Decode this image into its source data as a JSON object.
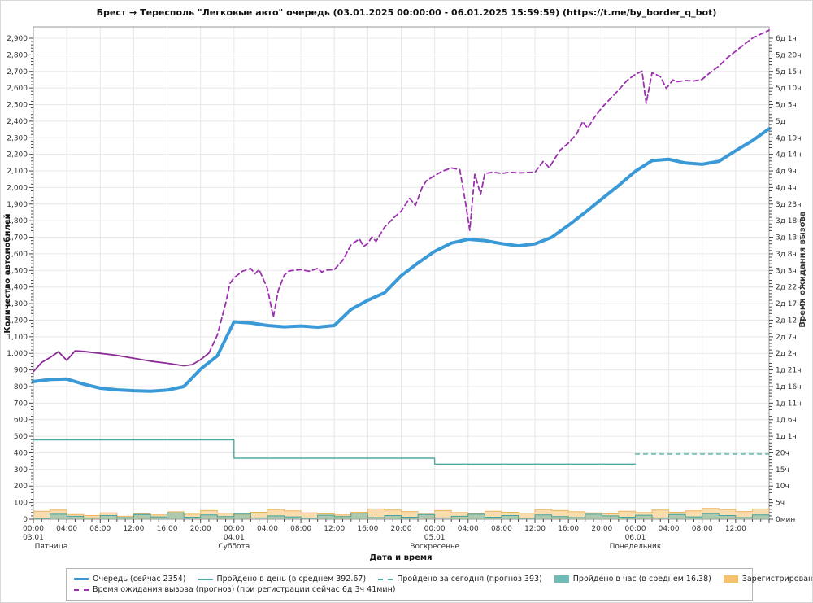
{
  "title": "Брест  →  Тересполь \"Легковые авто\" очередь (03.01.2025 00:00:00 - 06.01.2025 15:59:59) (https://t.me/by_border_q_bot)",
  "axes": {
    "x_label": "Дата и время",
    "left_label": "Количество автомобилей",
    "right_label": "Время ожидания вызова"
  },
  "colors": {
    "queue_blue": "#3a9ad8",
    "wait_purple": "#8a2b96",
    "wait_purple_forecast": "#9b2fae",
    "teal": "#4faaa4",
    "teal_fill": "rgba(85,178,172,0.45)",
    "orange": "#edb45e",
    "orange_fill": "rgba(245,193,110,0.55)",
    "grid": "#e8e8e8",
    "frame": "#999999"
  },
  "chart_data": {
    "type": "line",
    "title": "Брест → Тересполь \"Легковые авто\" очередь (03.01.2025 00:00:00 - 06.01.2025 15:59:59)",
    "xlabel": "Дата и время",
    "ylabel": "Количество автомобилей",
    "ylabel_right": "Время ожидания вызова",
    "x_unit": "hours since 03.01.2025 00:00",
    "x_range": [
      0,
      88
    ],
    "ylim": [
      0,
      2950
    ],
    "grid": true,
    "legend_position": "bottom",
    "x_ticks": [
      {
        "h": 0,
        "label": "00:00"
      },
      {
        "h": 4,
        "label": "04:00"
      },
      {
        "h": 8,
        "label": "08:00"
      },
      {
        "h": 12,
        "label": "12:00"
      },
      {
        "h": 16,
        "label": "16:00"
      },
      {
        "h": 20,
        "label": "20:00"
      },
      {
        "h": 24,
        "label": "00:00"
      },
      {
        "h": 28,
        "label": "04:00"
      },
      {
        "h": 32,
        "label": "08:00"
      },
      {
        "h": 36,
        "label": "12:00"
      },
      {
        "h": 40,
        "label": "16:00"
      },
      {
        "h": 44,
        "label": "20:00"
      },
      {
        "h": 48,
        "label": "00:00"
      },
      {
        "h": 52,
        "label": "04:00"
      },
      {
        "h": 56,
        "label": "08:00"
      },
      {
        "h": 60,
        "label": "12:00"
      },
      {
        "h": 64,
        "label": "16:00"
      },
      {
        "h": 68,
        "label": "20:00"
      },
      {
        "h": 72,
        "label": "00:00"
      },
      {
        "h": 76,
        "label": "04:00"
      },
      {
        "h": 80,
        "label": "08:00"
      },
      {
        "h": 84,
        "label": "12:00"
      }
    ],
    "days": [
      {
        "h": 0,
        "date": "03.01",
        "weekday": "Пятница"
      },
      {
        "h": 24,
        "date": "04.01",
        "weekday": "Суббота"
      },
      {
        "h": 48,
        "date": "05.01",
        "weekday": "Воскресенье"
      },
      {
        "h": 72,
        "date": "06.01",
        "weekday": "Понедельник"
      }
    ],
    "right_tick_labels": [
      "0мин",
      "5ч",
      "10ч",
      "15ч",
      "20ч",
      "1д 1ч",
      "1д 6ч",
      "1д 11ч",
      "1д 16ч",
      "1д 21ч",
      "2д 2ч",
      "2д 7ч",
      "2д 12ч",
      "2д 17ч",
      "2д 22ч",
      "3д 3ч",
      "3д 8ч",
      "3д 13ч",
      "3д 18ч",
      "3д 23ч",
      "4д 4ч",
      "4д 9ч",
      "4д 14ч",
      "4д 19ч",
      "5д",
      "5д 5ч",
      "5д 10ч",
      "5д 15ч",
      "5д 20ч",
      "6д 1ч"
    ],
    "series": [
      {
        "id": "registered_per_hour",
        "name": "Зарегистрировано в час (в среднем 34.76)",
        "type": "area",
        "step_hours": 2,
        "color": "#edb45e",
        "fill": "rgba(245,193,110,0.55)",
        "width": 1,
        "values": [
          48,
          55,
          28,
          22,
          38,
          18,
          32,
          26,
          45,
          30,
          52,
          36,
          28,
          42,
          58,
          50,
          38,
          32,
          26,
          42,
          62,
          55,
          46,
          36,
          52,
          40,
          32,
          48,
          42,
          36,
          58,
          52,
          45,
          38,
          32,
          48,
          40,
          55,
          42,
          50,
          65,
          58,
          46,
          62,
          55
        ]
      },
      {
        "id": "passed_per_hour",
        "name": "Пройдено в час (в среднем 16.38)",
        "type": "area",
        "step_hours": 2,
        "color": "#45a49e",
        "fill": "rgba(85,178,172,0.45)",
        "width": 1,
        "values": [
          4,
          30,
          18,
          8,
          22,
          10,
          28,
          14,
          38,
          12,
          26,
          16,
          34,
          8,
          20,
          14,
          6,
          24,
          16,
          36,
          10,
          22,
          12,
          28,
          8,
          18,
          30,
          12,
          22,
          6,
          26,
          16,
          10,
          30,
          20,
          12,
          24,
          8,
          28,
          14,
          34,
          22,
          10,
          26,
          18
        ]
      },
      {
        "id": "passed_per_day",
        "name": "Пройдено в день (в среднем 392.67)",
        "type": "xy",
        "color": "#4faaa4",
        "width": 1.4,
        "dash": null,
        "points": [
          [
            0,
            478
          ],
          [
            24,
            478
          ],
          [
            24,
            368
          ],
          [
            48,
            368
          ],
          [
            48,
            332
          ],
          [
            72,
            332
          ]
        ]
      },
      {
        "id": "passed_today_forecast",
        "name": "Пройдено за сегодня (прогноз 393)",
        "type": "xy",
        "color": "#4faaa4",
        "width": 1.4,
        "dash": "5,5",
        "points": [
          [
            72,
            393
          ],
          [
            88,
            393
          ]
        ]
      },
      {
        "id": "wait_actual",
        "name": "Время ожидания вызова",
        "type": "xy",
        "color": "#8a2b96",
        "width": 1.8,
        "dash": null,
        "points": [
          [
            0,
            890
          ],
          [
            1,
            945
          ],
          [
            2,
            975
          ],
          [
            3,
            1010
          ],
          [
            4,
            958
          ],
          [
            5,
            1015
          ],
          [
            6,
            1012
          ],
          [
            8,
            1000
          ],
          [
            10,
            988
          ],
          [
            12,
            970
          ],
          [
            14,
            953
          ],
          [
            16,
            940
          ],
          [
            18,
            925
          ],
          [
            19,
            932
          ],
          [
            20,
            962
          ],
          [
            21,
            1002
          ]
        ]
      },
      {
        "id": "wait_forecast",
        "name": "Время ожидания вызова (прогноз) (при регистрации сейчас 6д 3ч 41мин)",
        "type": "xy",
        "color": "#9b2fae",
        "width": 1.8,
        "dash": "6,4",
        "points": [
          [
            21,
            1002
          ],
          [
            22,
            1110
          ],
          [
            23,
            1300
          ],
          [
            23.5,
            1420
          ],
          [
            24,
            1455
          ],
          [
            25,
            1495
          ],
          [
            26,
            1512
          ],
          [
            26.5,
            1480
          ],
          [
            27,
            1505
          ],
          [
            28,
            1390
          ],
          [
            28.7,
            1218
          ],
          [
            29.3,
            1380
          ],
          [
            30,
            1470
          ],
          [
            30.5,
            1495
          ],
          [
            31,
            1500
          ],
          [
            32,
            1505
          ],
          [
            33,
            1495
          ],
          [
            34,
            1512
          ],
          [
            34.5,
            1490
          ],
          [
            35,
            1502
          ],
          [
            36,
            1505
          ],
          [
            37,
            1560
          ],
          [
            38,
            1655
          ],
          [
            39,
            1690
          ],
          [
            39.5,
            1645
          ],
          [
            40,
            1662
          ],
          [
            40.5,
            1702
          ],
          [
            41,
            1675
          ],
          [
            42,
            1760
          ],
          [
            43,
            1812
          ],
          [
            44,
            1858
          ],
          [
            45,
            1935
          ],
          [
            45.7,
            1892
          ],
          [
            46.5,
            2000
          ],
          [
            47,
            2040
          ],
          [
            48,
            2072
          ],
          [
            49,
            2100
          ],
          [
            50,
            2118
          ],
          [
            51,
            2108
          ],
          [
            51.7,
            1905
          ],
          [
            52.2,
            1742
          ],
          [
            52.8,
            2080
          ],
          [
            53.5,
            1958
          ],
          [
            54,
            2085
          ],
          [
            55,
            2092
          ],
          [
            56,
            2085
          ],
          [
            57,
            2092
          ],
          [
            58,
            2088
          ],
          [
            59,
            2090
          ],
          [
            60,
            2092
          ],
          [
            61,
            2158
          ],
          [
            61.7,
            2120
          ],
          [
            62.5,
            2185
          ],
          [
            63,
            2225
          ],
          [
            64,
            2268
          ],
          [
            65,
            2325
          ],
          [
            65.7,
            2398
          ],
          [
            66.3,
            2358
          ],
          [
            67,
            2415
          ],
          [
            68,
            2482
          ],
          [
            69,
            2535
          ],
          [
            70,
            2588
          ],
          [
            71,
            2645
          ],
          [
            72,
            2682
          ],
          [
            72.8,
            2702
          ],
          [
            73.3,
            2508
          ],
          [
            74,
            2692
          ],
          [
            75,
            2668
          ],
          [
            75.7,
            2598
          ],
          [
            76.5,
            2648
          ],
          [
            77,
            2638
          ],
          [
            78,
            2645
          ],
          [
            79,
            2642
          ],
          [
            80,
            2652
          ],
          [
            81,
            2695
          ],
          [
            82,
            2732
          ],
          [
            83,
            2782
          ],
          [
            84,
            2822
          ],
          [
            85,
            2862
          ],
          [
            86,
            2900
          ],
          [
            87,
            2925
          ],
          [
            88,
            2948
          ]
        ]
      },
      {
        "id": "queue",
        "name": "Очередь (сейчас 2354)",
        "type": "line",
        "step_hours": 2,
        "color": "#3a9ad8",
        "width": 4,
        "values": [
          830,
          842,
          845,
          815,
          790,
          780,
          775,
          772,
          778,
          800,
          905,
          985,
          1190,
          1183,
          1168,
          1160,
          1165,
          1158,
          1168,
          1265,
          1320,
          1365,
          1468,
          1545,
          1615,
          1665,
          1688,
          1680,
          1662,
          1648,
          1660,
          1700,
          1772,
          1850,
          1932,
          2012,
          2098,
          2162,
          2170,
          2148,
          2140,
          2158,
          2222,
          2282,
          2354
        ]
      }
    ]
  },
  "legend": {
    "items": [
      {
        "row": 1,
        "marker": "line",
        "color": "#3a9ad8",
        "label": "Очередь (сейчас 2354)"
      },
      {
        "row": 1,
        "marker": "thin",
        "color": "#4faaa4",
        "label": "Пройдено в день (в среднем 392.67)"
      },
      {
        "row": 1,
        "marker": "dash",
        "color": "#4faaa4",
        "label": "Пройдено за сегодня (прогноз 393)"
      },
      {
        "row": 1,
        "marker": "box",
        "color": "#6fbcb6",
        "label": "Пройдено в час (в среднем 16.38)"
      },
      {
        "row": 1,
        "marker": "box",
        "color": "#f5c16e",
        "label": "Зарегистрировано в час (в среднем 34.76)"
      },
      {
        "row": 1,
        "marker": "thin",
        "color": "#8a2b96",
        "label": "Время ожидания вызова"
      },
      {
        "row": 2,
        "marker": "dash",
        "color": "#9b2fae",
        "label": "Время ожидания вызова (прогноз) (при регистрации сейчас 6д 3ч 41мин)"
      }
    ]
  }
}
